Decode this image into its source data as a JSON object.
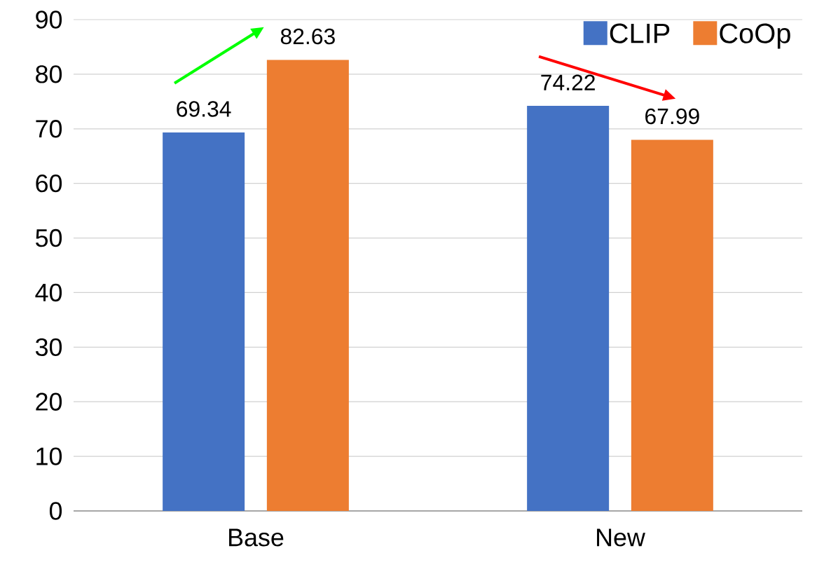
{
  "chart_data": {
    "type": "bar",
    "categories": [
      "Base",
      "New"
    ],
    "series": [
      {
        "name": "CLIP",
        "color": "#4472c4",
        "values": [
          69.34,
          74.22
        ]
      },
      {
        "name": "CoOp",
        "color": "#ed7d31",
        "values": [
          82.63,
          67.99
        ]
      }
    ],
    "ylim": [
      0,
      90
    ],
    "yticks": [
      0,
      10,
      20,
      30,
      40,
      50,
      60,
      70,
      80,
      90
    ],
    "grid": "y",
    "legend": "top right",
    "data_labels": true
  }
}
